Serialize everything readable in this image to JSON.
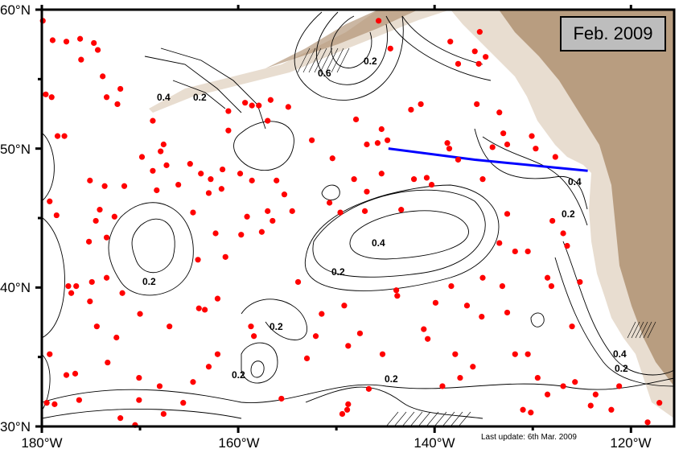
{
  "title_box": "Feb. 2009",
  "last_update": "Last update: 6th Mar. 2009",
  "axes": {
    "lon_ticks": [
      {
        "value": -180,
        "label": "180°W"
      },
      {
        "value": -160,
        "label": "160°W"
      },
      {
        "value": -140,
        "label": "140°W"
      },
      {
        "value": -120,
        "label": "120°W"
      }
    ],
    "lat_ticks": [
      {
        "value": 60,
        "label": "60°N"
      },
      {
        "value": 50,
        "label": "50°N"
      },
      {
        "value": 40,
        "label": "40°N"
      },
      {
        "value": 30,
        "label": "30°N"
      }
    ],
    "lon_range": [
      -180,
      -115.6
    ],
    "lat_range": [
      30,
      60
    ]
  },
  "contour_labels": [
    "0.2",
    "0.4",
    "0.6"
  ],
  "colors": {
    "floats": "#ff0000",
    "section_line": "#0000ff",
    "land_low": "#e8ddd0",
    "land_high": "#a88766",
    "contour": "#000000"
  },
  "section_line": [
    [
      -144.7,
      50.0
    ],
    [
      -135.9,
      49.2
    ],
    [
      -124.4,
      48.4
    ]
  ],
  "floats": [
    [
      -179.9,
      59.2
    ],
    [
      -178.9,
      57.8
    ],
    [
      -176.1,
      57.9
    ],
    [
      -177.5,
      57.7
    ],
    [
      -174.7,
      57.6
    ],
    [
      -174.3,
      57.1
    ],
    [
      -176,
      56.4
    ],
    [
      -173.8,
      55.2
    ],
    [
      -172,
      54.3
    ],
    [
      -179.6,
      53.9
    ],
    [
      -179,
      53.7
    ],
    [
      -173.4,
      53.7
    ],
    [
      -172.3,
      53.2
    ],
    [
      -168.7,
      52
    ],
    [
      -178.4,
      50.9
    ],
    [
      -177.7,
      50.9
    ],
    [
      -167.6,
      50.3
    ],
    [
      -167.9,
      49.8
    ],
    [
      -169.8,
      49.4
    ],
    [
      -168.7,
      48.4
    ],
    [
      -167.3,
      48.8
    ],
    [
      -166.1,
      47.4
    ],
    [
      -164.9,
      48.9
    ],
    [
      -163.8,
      48.2
    ],
    [
      -162.8,
      47.8
    ],
    [
      -161.6,
      48.5
    ],
    [
      -159.8,
      48.2
    ],
    [
      -163,
      46.8
    ],
    [
      -161.7,
      47.1
    ],
    [
      -158.6,
      47.7
    ],
    [
      -156.1,
      47.7
    ],
    [
      -155.3,
      46.7
    ],
    [
      -157,
      45.5
    ],
    [
      -154.5,
      45.5
    ],
    [
      -159.1,
      45.1
    ],
    [
      -157.6,
      44
    ],
    [
      -159.7,
      43.8
    ],
    [
      -162.3,
      43.9
    ],
    [
      -164.1,
      42
    ],
    [
      -161.3,
      42.2
    ],
    [
      -156.5,
      44.8
    ],
    [
      -150.7,
      46.1
    ],
    [
      -149.6,
      45.4
    ],
    [
      -146.9,
      46.9
    ],
    [
      -147.1,
      45.5
    ],
    [
      -148.2,
      47.8
    ],
    [
      -145.4,
      48.2
    ],
    [
      -142.1,
      47.8
    ],
    [
      -140.8,
      47.9
    ],
    [
      -140.3,
      47.4
    ],
    [
      -143.4,
      45.6
    ],
    [
      -150.4,
      49.3
    ],
    [
      -148,
      52.1
    ],
    [
      -145.4,
      51.4
    ],
    [
      -145.8,
      50.4
    ],
    [
      -144.8,
      50.6
    ],
    [
      -146.9,
      50.3
    ],
    [
      -152.5,
      50.6
    ],
    [
      -154.9,
      53
    ],
    [
      -157,
      52
    ],
    [
      -161,
      52.7
    ],
    [
      -159.3,
      53.3
    ],
    [
      -158.6,
      53.1
    ],
    [
      -157.9,
      53.1
    ],
    [
      -156.7,
      53.5
    ],
    [
      -161,
      51.3
    ],
    [
      -141.4,
      53.2
    ],
    [
      -142.4,
      52.8
    ],
    [
      -138.7,
      50.4
    ],
    [
      -138.5,
      50
    ],
    [
      -137.6,
      49.2
    ],
    [
      -137.6,
      56.1
    ],
    [
      -138.4,
      57.7
    ],
    [
      -135.4,
      58.4
    ],
    [
      -135.9,
      57
    ],
    [
      -134.8,
      56.6
    ],
    [
      -135.5,
      56.1
    ],
    [
      -135.7,
      53.2
    ],
    [
      -133.4,
      52.6
    ],
    [
      -133,
      51.1
    ],
    [
      -134.1,
      50.1
    ],
    [
      -132.6,
      50.3
    ],
    [
      -130.1,
      50.9
    ],
    [
      -129.7,
      50
    ],
    [
      -127.7,
      49.4
    ],
    [
      -128,
      44.8
    ],
    [
      -126.9,
      43.9
    ],
    [
      -126.5,
      43
    ],
    [
      -135.1,
      47.8
    ],
    [
      -132.6,
      45.3
    ],
    [
      -133.4,
      43.2
    ],
    [
      -131.8,
      42.6
    ],
    [
      -130.5,
      42.6
    ],
    [
      -135.1,
      40.7
    ],
    [
      -133.1,
      40.1
    ],
    [
      -128.5,
      40.7
    ],
    [
      -128.1,
      40.1
    ],
    [
      -125.2,
      40.4
    ],
    [
      -132.6,
      38.2
    ],
    [
      -135.2,
      37.9
    ],
    [
      -136.7,
      38.7
    ],
    [
      -138.3,
      40.1
    ],
    [
      -139.9,
      38.9
    ],
    [
      -143.9,
      39.8
    ],
    [
      -143.8,
      39.4
    ],
    [
      -141.1,
      37
    ],
    [
      -140.7,
      36.3
    ],
    [
      -137.9,
      35.2
    ],
    [
      -137.4,
      33.5
    ],
    [
      -139.2,
      32.9
    ],
    [
      -136.1,
      34.3
    ],
    [
      -145.3,
      35.2
    ],
    [
      -146.7,
      32.7
    ],
    [
      -147.6,
      36.7
    ],
    [
      -148.8,
      35.8
    ],
    [
      -152.1,
      36.5
    ],
    [
      -151.5,
      38.1
    ],
    [
      -149.2,
      38.7
    ],
    [
      -148.8,
      31.6
    ],
    [
      -148.9,
      31.2
    ],
    [
      -149.4,
      30.9
    ],
    [
      -155.6,
      32
    ],
    [
      -153,
      34.9
    ],
    [
      -158.4,
      36.5
    ],
    [
      -158.7,
      37.2
    ],
    [
      -153.9,
      40.4
    ],
    [
      -162.1,
      39.2
    ],
    [
      -163.4,
      38.4
    ],
    [
      -164,
      38.5
    ],
    [
      -167,
      37.2
    ],
    [
      -162.1,
      35.2
    ],
    [
      -163,
      34.3
    ],
    [
      -164.6,
      33.2
    ],
    [
      -165.6,
      31.7
    ],
    [
      -168,
      32.9
    ],
    [
      -167.6,
      30.9
    ],
    [
      -170.1,
      33.5
    ],
    [
      -170.1,
      31.9
    ],
    [
      -170.5,
      30.1
    ],
    [
      -172,
      30.6
    ],
    [
      -173.3,
      34.6
    ],
    [
      -176.6,
      33.8
    ],
    [
      -176.2,
      31.9
    ],
    [
      -179.2,
      35.2
    ],
    [
      -179.5,
      31.7
    ],
    [
      -178.7,
      31.6
    ],
    [
      -177.5,
      33.7
    ],
    [
      -177.3,
      40.1
    ],
    [
      -176.5,
      40.1
    ],
    [
      -177,
      39.6
    ],
    [
      -174.9,
      40.4
    ],
    [
      -175.1,
      39
    ],
    [
      -173.4,
      40.7
    ],
    [
      -174.4,
      37.2
    ],
    [
      -172.4,
      36.4
    ],
    [
      -171.8,
      39.6
    ],
    [
      -170,
      38.1
    ],
    [
      -175.2,
      43.3
    ],
    [
      -173.4,
      43.6
    ],
    [
      -174.1,
      45.6
    ],
    [
      -174.5,
      44.8
    ],
    [
      -172.6,
      45.1
    ],
    [
      -179.2,
      46.2
    ],
    [
      -178.5,
      45.2
    ],
    [
      -175.1,
      47.7
    ],
    [
      -173.6,
      47.3
    ],
    [
      -171.6,
      47.3
    ],
    [
      -168.3,
      47
    ],
    [
      -164.6,
      45.4
    ],
    [
      -131.8,
      35.2
    ],
    [
      -130.5,
      35.2
    ],
    [
      -129.5,
      33.5
    ],
    [
      -128.5,
      32.3
    ],
    [
      -126.9,
      32.9
    ],
    [
      -125.7,
      33.2
    ],
    [
      -123.6,
      32.3
    ],
    [
      -121.2,
      32.9
    ],
    [
      -122,
      31.2
    ],
    [
      -124.1,
      31.5
    ],
    [
      -131,
      31.2
    ],
    [
      -130.2,
      31
    ],
    [
      -126,
      37.2
    ],
    [
      -118.3,
      30.3
    ],
    [
      -117.1,
      31.7
    ],
    [
      -145.7,
      59.2
    ],
    [
      -144.5,
      57.2
    ]
  ]
}
